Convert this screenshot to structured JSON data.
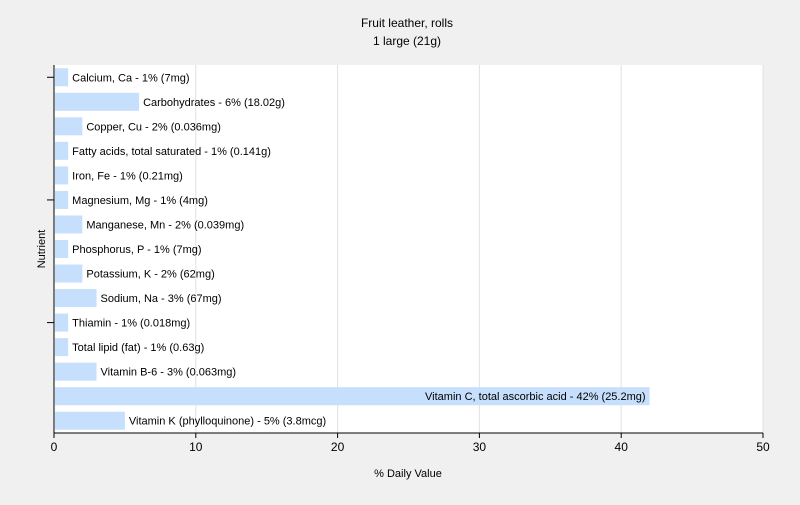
{
  "chart_data": {
    "type": "bar",
    "orientation": "horizontal",
    "title": "Fruit leather, rolls",
    "subtitle": "1 large (21g)",
    "xlabel": "% Daily Value",
    "ylabel": "Nutrient",
    "xlim": [
      0,
      50
    ],
    "xticks": [
      0,
      10,
      20,
      30,
      40,
      50
    ],
    "grid": true,
    "bar_color": "#c6dffc",
    "categories": [
      "Calcium, Ca",
      "Carbohydrates",
      "Copper, Cu",
      "Fatty acids, total saturated",
      "Iron, Fe",
      "Magnesium, Mg",
      "Manganese, Mn",
      "Phosphorus, P",
      "Potassium, K",
      "Sodium, Na",
      "Thiamin",
      "Total lipid (fat)",
      "Vitamin B-6",
      "Vitamin C, total ascorbic acid",
      "Vitamin K (phylloquinone)"
    ],
    "values": [
      1,
      6,
      2,
      1,
      1,
      1,
      2,
      1,
      2,
      3,
      1,
      1,
      3,
      42,
      5
    ],
    "labels": [
      "Calcium, Ca - 1% (7mg)",
      "Carbohydrates - 6% (18.02g)",
      "Copper, Cu - 2% (0.036mg)",
      "Fatty acids, total saturated - 1% (0.141g)",
      "Iron, Fe - 1% (0.21mg)",
      "Magnesium, Mg - 1% (4mg)",
      "Manganese, Mn - 2% (0.039mg)",
      "Phosphorus, P - 1% (7mg)",
      "Potassium, K - 2% (62mg)",
      "Sodium, Na - 3% (67mg)",
      "Thiamin - 1% (0.018mg)",
      "Total lipid (fat) - 1% (0.63g)",
      "Vitamin B-6 - 3% (0.063mg)",
      "Vitamin C, total ascorbic acid - 42% (25.2mg)",
      "Vitamin K (phylloquinone) - 5% (3.8mcg)"
    ]
  }
}
